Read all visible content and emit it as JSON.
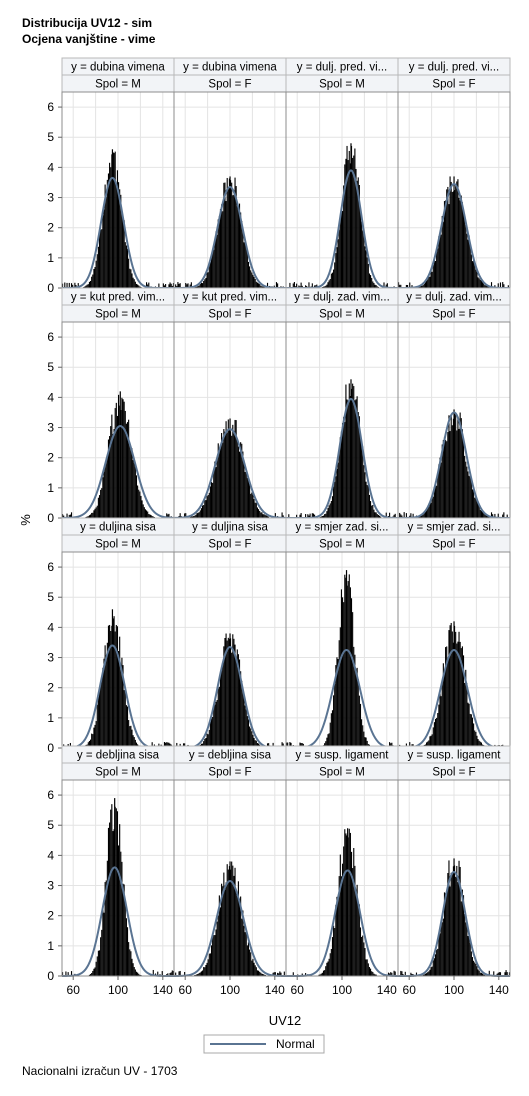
{
  "titles": [
    "Distribucija UV12 - sim",
    "Ocjena vanjštine - vime"
  ],
  "footer": "Nacionalni izračun UV - 1703",
  "chart_data": {
    "type": "histogram-panel",
    "xlabel": "UV12",
    "ylabel": "%",
    "xticks": [
      60,
      100,
      140
    ],
    "xlim": [
      50,
      150
    ],
    "yticks": [
      0,
      1,
      2,
      3,
      4,
      5,
      6
    ],
    "ylim": [
      0,
      6.5
    ],
    "legend": {
      "entries": [
        "Normal"
      ],
      "placement": "bottom-center"
    },
    "grid": true,
    "colors": {
      "bars": "#000000",
      "normal_curve": "#5a7492",
      "header_bg": "#f2f4f7",
      "grid": "#e4e4e4"
    },
    "panels": [
      {
        "y": "dubina vimena",
        "spol": "M",
        "mean": 95,
        "sd": 10,
        "curve_peak": 3.65,
        "bar_peak": 4.6
      },
      {
        "y": "dubina vimena",
        "spol": "F",
        "mean": 100,
        "sd": 11,
        "curve_peak": 3.35,
        "bar_peak": 3.7
      },
      {
        "y": "dulj. pred. vi...",
        "spol": "M",
        "mean": 108,
        "sd": 9.5,
        "curve_peak": 3.9,
        "bar_peak": 4.8
      },
      {
        "y": "dulj. pred. vi...",
        "spol": "F",
        "mean": 100,
        "sd": 11,
        "curve_peak": 3.45,
        "bar_peak": 3.7
      },
      {
        "y": "kut pred. vim...",
        "spol": "M",
        "mean": 102,
        "sd": 13,
        "curve_peak": 3.05,
        "bar_peak": 4.2
      },
      {
        "y": "kut pred. vim...",
        "spol": "F",
        "mean": 100,
        "sd": 13,
        "curve_peak": 2.95,
        "bar_peak": 3.3
      },
      {
        "y": "dulj. zad. vim...",
        "spol": "M",
        "mean": 108,
        "sd": 10,
        "curve_peak": 3.95,
        "bar_peak": 4.6
      },
      {
        "y": "dulj. zad. vim...",
        "spol": "F",
        "mean": 100,
        "sd": 11,
        "curve_peak": 3.5,
        "bar_peak": 3.6
      },
      {
        "y": "duljina sisa",
        "spol": "M",
        "mean": 95,
        "sd": 11,
        "curve_peak": 3.4,
        "bar_peak": 4.6
      },
      {
        "y": "duljina sisa",
        "spol": "F",
        "mean": 100,
        "sd": 11,
        "curve_peak": 3.35,
        "bar_peak": 3.8
      },
      {
        "y": "smjer zad. si...",
        "spol": "M",
        "mean": 104,
        "sd": 12,
        "curve_peak": 3.25,
        "bar_peak": 5.9
      },
      {
        "y": "smjer zad. si...",
        "spol": "F",
        "mean": 100,
        "sd": 12,
        "curve_peak": 3.25,
        "bar_peak": 4.2
      },
      {
        "y": "debljina sisa",
        "spol": "M",
        "mean": 97,
        "sd": 11,
        "curve_peak": 3.6,
        "bar_peak": 5.9
      },
      {
        "y": "debljina sisa",
        "spol": "F",
        "mean": 100,
        "sd": 12,
        "curve_peak": 3.15,
        "bar_peak": 3.8
      },
      {
        "y": "susp. ligament",
        "spol": "M",
        "mean": 105,
        "sd": 11,
        "curve_peak": 3.5,
        "bar_peak": 4.9
      },
      {
        "y": "susp. ligament",
        "spol": "F",
        "mean": 100,
        "sd": 10,
        "curve_peak": 3.45,
        "bar_peak": 3.9
      }
    ]
  }
}
